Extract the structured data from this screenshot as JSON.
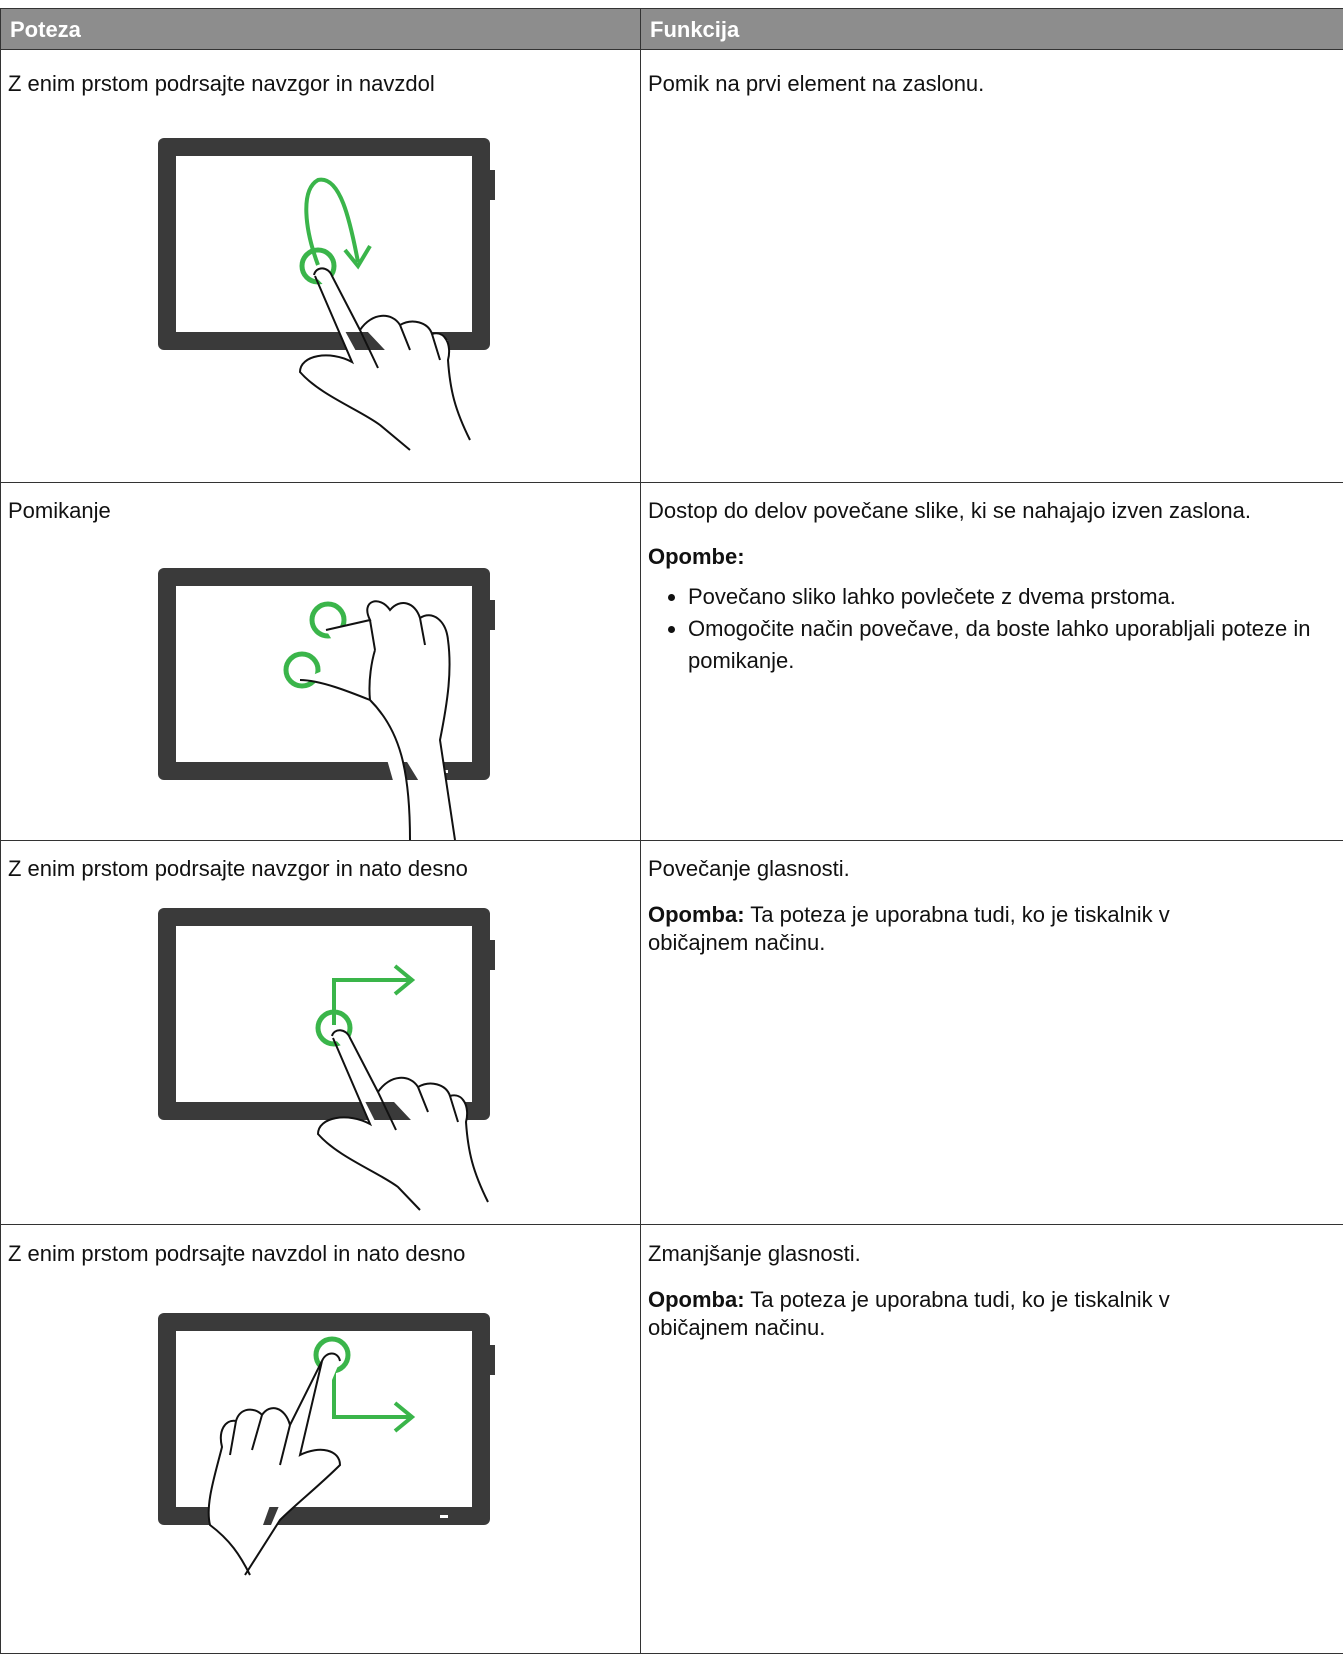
{
  "table": {
    "headers": [
      "Poteza",
      "Funkcija"
    ],
    "rows": [
      {
        "gesture": "Z enim prstom podrsajte navzgor in navzdol",
        "function": "Pomik na prvi element na zaslonu."
      },
      {
        "gesture": "Pomikanje",
        "function": "Dostop do delov povečane slike, ki se nahajajo izven zaslona.",
        "notes_label": "Opombe:",
        "notes": [
          "Povečano sliko lahko povlečete z dvema prstoma.",
          "Omogočite način povečave, da boste lahko uporabljali poteze in pomikanje."
        ]
      },
      {
        "gesture": "Z enim prstom podrsajte navzgor in nato desno",
        "function": "Povečanje glasnosti.",
        "note_label": "Opomba:",
        "note": "Ta poteza je uporabna tudi, ko je tiskalnik v običajnem načinu."
      },
      {
        "gesture": "Z enim prstom podrsajte navzdol in nato desno",
        "function": "Zmanjšanje glasnosti.",
        "note_label": "Opomba:",
        "note": "Ta poteza je uporabna tudi, ko je tiskalnik v običajnem načinu."
      }
    ]
  }
}
